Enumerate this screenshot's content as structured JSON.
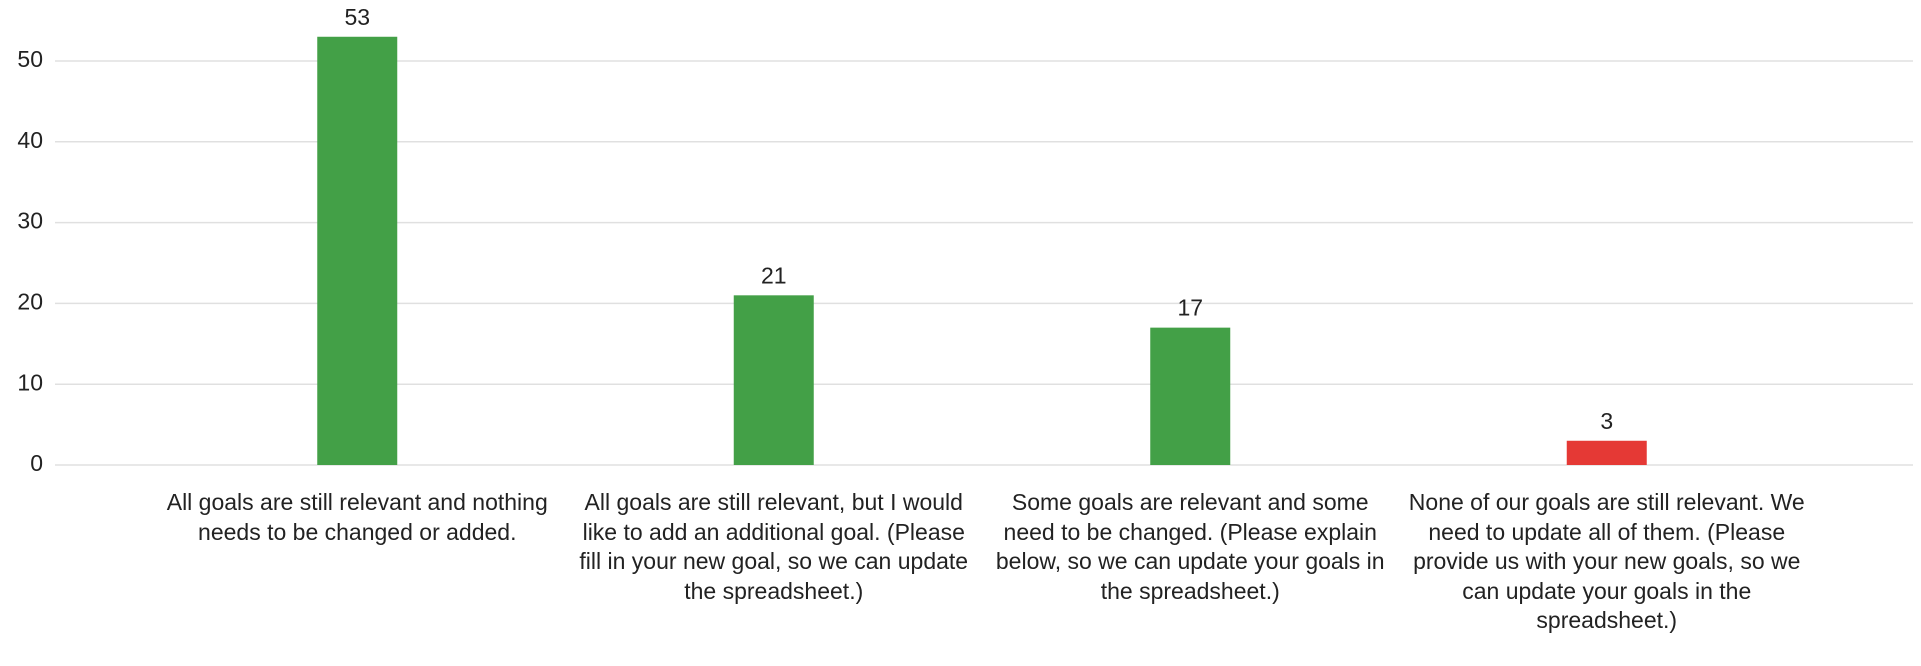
{
  "chart_data": {
    "type": "bar",
    "categories": [
      "All goals are still relevant and nothing needs to be changed or added.",
      "All goals are still relevant, but I would like to add an additional goal. (Please fill in your new goal, so we can update the spreadsheet.)",
      "Some goals are relevant and some need to be changed. (Please explain below, so we can update your goals in the spreadsheet.)",
      "None of our goals are still relevant. We need to update all of them. (Please provide us with your new goals, so we can update your goals in the spreadsheet.)"
    ],
    "values": [
      53,
      21,
      17,
      3
    ],
    "colors": [
      "#43a047",
      "#43a047",
      "#43a047",
      "#e53935"
    ],
    "ylim": [
      0,
      50
    ],
    "yticks": [
      0,
      10,
      20,
      30,
      40,
      50
    ],
    "grid": true
  }
}
